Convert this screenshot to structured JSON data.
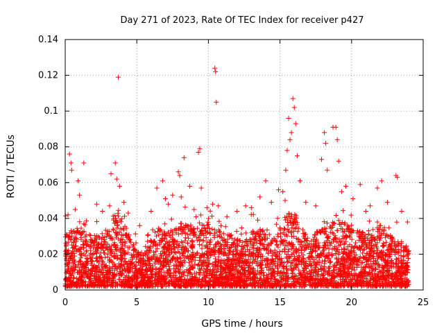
{
  "chart_data": {
    "type": "scatter",
    "title": "Day 271 of 2023, Rate Of TEC Index for receiver p427",
    "xlabel": "GPS time / hours",
    "ylabel": "ROTI / TECUs",
    "xlim": [
      0,
      25
    ],
    "ylim": [
      0,
      0.14
    ],
    "xticks": [
      0,
      5,
      10,
      15,
      20,
      25
    ],
    "xtick_labels": [
      "0",
      "5",
      "10",
      "15",
      "20",
      "25"
    ],
    "yticks": [
      0,
      0.02,
      0.04,
      0.06,
      0.08,
      0.1,
      0.12,
      0.14
    ],
    "ytick_labels": [
      "0",
      "0.02",
      "0.04",
      "0.06",
      "0.08",
      "0.1",
      "0.12",
      "0.14"
    ],
    "grid": true,
    "marker": "plus",
    "series": [
      {
        "name": "ROTI",
        "color": "#ff0000",
        "points": [
          [
            0.3,
            0.076
          ],
          [
            0.4,
            0.071
          ],
          [
            0.45,
            0.067
          ],
          [
            0.9,
            0.061
          ],
          [
            1.3,
            0.071
          ],
          [
            1.0,
            0.053
          ],
          [
            0.7,
            0.045
          ],
          [
            0.2,
            0.042
          ],
          [
            2.2,
            0.048
          ],
          [
            2.6,
            0.044
          ],
          [
            3.1,
            0.047
          ],
          [
            3.2,
            0.065
          ],
          [
            3.5,
            0.071
          ],
          [
            3.6,
            0.062
          ],
          [
            3.7,
            0.119
          ],
          [
            3.8,
            0.058
          ],
          [
            4.1,
            0.049
          ],
          [
            4.4,
            0.043
          ],
          [
            5.2,
            0.036
          ],
          [
            6.0,
            0.044
          ],
          [
            6.4,
            0.057
          ],
          [
            6.8,
            0.061
          ],
          [
            7.0,
            0.051
          ],
          [
            7.2,
            0.048
          ],
          [
            7.5,
            0.053
          ],
          [
            7.9,
            0.066
          ],
          [
            8.0,
            0.064
          ],
          [
            8.1,
            0.052
          ],
          [
            8.3,
            0.074
          ],
          [
            8.7,
            0.058
          ],
          [
            9.0,
            0.045
          ],
          [
            9.3,
            0.077
          ],
          [
            9.4,
            0.079
          ],
          [
            9.5,
            0.057
          ],
          [
            9.9,
            0.046
          ],
          [
            10.3,
            0.048
          ],
          [
            10.45,
            0.124
          ],
          [
            10.5,
            0.122
          ],
          [
            10.55,
            0.105
          ],
          [
            10.7,
            0.047
          ],
          [
            11.3,
            0.041
          ],
          [
            12.0,
            0.044
          ],
          [
            12.6,
            0.047
          ],
          [
            13.0,
            0.046
          ],
          [
            13.6,
            0.052
          ],
          [
            14.0,
            0.061
          ],
          [
            14.4,
            0.049
          ],
          [
            14.9,
            0.056
          ],
          [
            15.2,
            0.055
          ],
          [
            15.4,
            0.067
          ],
          [
            15.5,
            0.078
          ],
          [
            15.6,
            0.096
          ],
          [
            15.7,
            0.084
          ],
          [
            15.8,
            0.088
          ],
          [
            15.9,
            0.107
          ],
          [
            16.0,
            0.102
          ],
          [
            16.1,
            0.093
          ],
          [
            16.2,
            0.075
          ],
          [
            16.4,
            0.061
          ],
          [
            16.8,
            0.049
          ],
          [
            17.5,
            0.047
          ],
          [
            17.9,
            0.073
          ],
          [
            18.1,
            0.088
          ],
          [
            18.2,
            0.082
          ],
          [
            18.3,
            0.067
          ],
          [
            18.7,
            0.091
          ],
          [
            18.9,
            0.091
          ],
          [
            19.0,
            0.084
          ],
          [
            19.1,
            0.072
          ],
          [
            19.3,
            0.055
          ],
          [
            19.6,
            0.058
          ],
          [
            20.1,
            0.051
          ],
          [
            20.6,
            0.059
          ],
          [
            21.0,
            0.044
          ],
          [
            21.3,
            0.047
          ],
          [
            21.8,
            0.057
          ],
          [
            22.1,
            0.061
          ],
          [
            22.5,
            0.049
          ],
          [
            23.1,
            0.064
          ],
          [
            23.2,
            0.063
          ],
          [
            23.5,
            0.044
          ],
          [
            23.9,
            0.038
          ]
        ]
      }
    ],
    "dense_band": {
      "description": "continuous scatter of ROTI samples across the full day",
      "x_range": [
        0,
        24
      ],
      "y_min": 0.002,
      "baseline_envelope": [
        [
          0,
          0.032
        ],
        [
          1,
          0.035
        ],
        [
          2,
          0.031
        ],
        [
          3,
          0.034
        ],
        [
          3.7,
          0.046
        ],
        [
          4.5,
          0.03
        ],
        [
          5,
          0.022
        ],
        [
          5.5,
          0.02
        ],
        [
          6,
          0.027
        ],
        [
          6.6,
          0.036
        ],
        [
          7,
          0.032
        ],
        [
          8,
          0.038
        ],
        [
          9,
          0.036
        ],
        [
          10,
          0.038
        ],
        [
          11,
          0.032
        ],
        [
          12,
          0.03
        ],
        [
          12.5,
          0.026
        ],
        [
          13,
          0.033
        ],
        [
          14,
          0.035
        ],
        [
          14.5,
          0.03
        ],
        [
          15,
          0.036
        ],
        [
          15.8,
          0.05
        ],
        [
          16.5,
          0.036
        ],
        [
          17,
          0.028
        ],
        [
          18,
          0.036
        ],
        [
          19,
          0.042
        ],
        [
          20,
          0.034
        ],
        [
          21,
          0.032
        ],
        [
          22,
          0.038
        ],
        [
          23,
          0.028
        ],
        [
          24,
          0.026
        ]
      ]
    }
  }
}
